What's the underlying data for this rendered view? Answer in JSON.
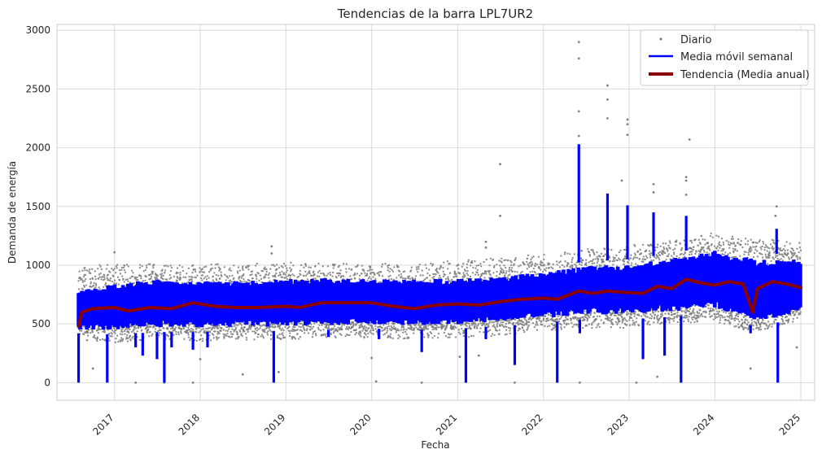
{
  "chart_data": {
    "type": "line",
    "title": "Tendencias de la barra LPL7UR2",
    "xlabel": "Fecha",
    "ylabel": "Demanda de energía",
    "xlim": [
      "2016-05-01",
      "2025-03-01"
    ],
    "ylim": [
      -150,
      3050
    ],
    "grid": true,
    "legend_position": "top-right",
    "x_ticks": [
      "2017",
      "2018",
      "2019",
      "2020",
      "2021",
      "2022",
      "2023",
      "2024",
      "2025"
    ],
    "y_ticks": [
      "0",
      "500",
      "1000",
      "1500",
      "2000",
      "2500",
      "3000"
    ],
    "series": [
      {
        "name": "Diario",
        "style": "points",
        "color": "#808080",
        "x_start": "2016-08-01",
        "x_end": "2025-01-01",
        "baseline": [
          [
            "2016-08-01",
            640
          ],
          [
            "2017-01-01",
            620
          ],
          [
            "2017-07-01",
            650
          ],
          [
            "2018-01-01",
            630
          ],
          [
            "2018-07-01",
            640
          ],
          [
            "2019-01-01",
            645
          ],
          [
            "2019-07-01",
            660
          ],
          [
            "2020-01-01",
            655
          ],
          [
            "2020-07-01",
            640
          ],
          [
            "2021-01-01",
            660
          ],
          [
            "2021-07-01",
            680
          ],
          [
            "2022-01-01",
            730
          ],
          [
            "2022-07-01",
            760
          ],
          [
            "2023-01-01",
            760
          ],
          [
            "2023-07-01",
            820
          ],
          [
            "2024-01-01",
            860
          ],
          [
            "2024-07-01",
            820
          ],
          [
            "2025-01-01",
            820
          ]
        ],
        "high_band": [
          [
            "2016-08-01",
            1000
          ],
          [
            "2017-06-01",
            1010
          ],
          [
            "2018-06-01",
            1010
          ],
          [
            "2019-06-01",
            1030
          ],
          [
            "2020-06-01",
            1010
          ],
          [
            "2021-06-01",
            1060
          ],
          [
            "2022-06-01",
            1130
          ],
          [
            "2023-06-01",
            1200
          ],
          [
            "2024-01-01",
            1280
          ],
          [
            "2024-06-01",
            1230
          ],
          [
            "2025-01-01",
            1200
          ]
        ],
        "low_band": [
          [
            "2016-08-01",
            420
          ],
          [
            "2017-06-01",
            420
          ],
          [
            "2018-06-01",
            430
          ],
          [
            "2019-06-01",
            440
          ],
          [
            "2020-06-01",
            440
          ],
          [
            "2021-06-01",
            470
          ],
          [
            "2022-06-01",
            510
          ],
          [
            "2023-06-01",
            540
          ],
          [
            "2024-01-01",
            560
          ],
          [
            "2024-06-01",
            420
          ],
          [
            "2025-01-01",
            540
          ]
        ],
        "outliers": [
          [
            "2022-06-01",
            2900
          ],
          [
            "2022-06-01",
            2760
          ],
          [
            "2022-06-01",
            2310
          ],
          [
            "2022-06-01",
            2100
          ],
          [
            "2022-10-01",
            2530
          ],
          [
            "2022-10-01",
            2410
          ],
          [
            "2022-10-01",
            2250
          ],
          [
            "2022-12-25",
            2240
          ],
          [
            "2022-12-25",
            2200
          ],
          [
            "2022-12-25",
            2110
          ],
          [
            "2022-12-01",
            1720
          ],
          [
            "2023-09-15",
            2070
          ],
          [
            "2023-09-01",
            1750
          ],
          [
            "2023-09-01",
            1720
          ],
          [
            "2023-09-01",
            1600
          ],
          [
            "2023-04-15",
            1690
          ],
          [
            "2023-04-15",
            1620
          ],
          [
            "2021-07-01",
            1860
          ],
          [
            "2021-07-01",
            1420
          ],
          [
            "2024-09-20",
            1500
          ],
          [
            "2024-09-15",
            1420
          ],
          [
            "2021-05-01",
            1200
          ],
          [
            "2021-05-01",
            1150
          ],
          [
            "2018-11-01",
            1160
          ],
          [
            "2018-11-01",
            1100
          ],
          [
            "2017-01-01",
            1110
          ],
          [
            "2016-10-01",
            120
          ],
          [
            "2017-04-01",
            0
          ],
          [
            "2017-08-01",
            0
          ],
          [
            "2017-12-01",
            0
          ],
          [
            "2018-01-01",
            200
          ],
          [
            "2018-07-01",
            70
          ],
          [
            "2018-12-01",
            90
          ],
          [
            "2020-01-01",
            210
          ],
          [
            "2020-01-20",
            10
          ],
          [
            "2020-08-01",
            0
          ],
          [
            "2021-01-10",
            220
          ],
          [
            "2021-04-01",
            230
          ],
          [
            "2021-09-01",
            0
          ],
          [
            "2022-06-05",
            0
          ],
          [
            "2023-02-01",
            0
          ],
          [
            "2023-05-01",
            50
          ],
          [
            "2023-06-01",
            280
          ],
          [
            "2024-06-01",
            120
          ],
          [
            "2024-12-15",
            300
          ]
        ]
      },
      {
        "name": "Media móvil semanal",
        "style": "band-line",
        "color": "#0000ff",
        "x_start": "2016-08-01",
        "x_end": "2025-01-01",
        "high_band": [
          [
            "2016-08-01",
            820
          ],
          [
            "2017-01-01",
            880
          ],
          [
            "2017-07-01",
            920
          ],
          [
            "2018-01-01",
            910
          ],
          [
            "2018-07-01",
            900
          ],
          [
            "2019-01-01",
            920
          ],
          [
            "2019-07-01",
            930
          ],
          [
            "2020-01-01",
            920
          ],
          [
            "2020-07-01",
            920
          ],
          [
            "2021-01-01",
            920
          ],
          [
            "2021-07-01",
            940
          ],
          [
            "2022-01-01",
            980
          ],
          [
            "2022-07-01",
            1030
          ],
          [
            "2023-01-01",
            1050
          ],
          [
            "2023-07-01",
            1100
          ],
          [
            "2024-01-01",
            1170
          ],
          [
            "2024-07-01",
            1100
          ],
          [
            "2025-01-01",
            1090
          ]
        ],
        "low_band": [
          [
            "2016-08-01",
            420
          ],
          [
            "2017-01-01",
            410
          ],
          [
            "2017-07-01",
            430
          ],
          [
            "2018-01-01",
            430
          ],
          [
            "2018-07-01",
            440
          ],
          [
            "2019-01-01",
            440
          ],
          [
            "2019-07-01",
            450
          ],
          [
            "2020-01-01",
            460
          ],
          [
            "2020-07-01",
            450
          ],
          [
            "2021-01-01",
            460
          ],
          [
            "2021-07-01",
            480
          ],
          [
            "2022-01-01",
            510
          ],
          [
            "2022-07-01",
            540
          ],
          [
            "2023-01-01",
            540
          ],
          [
            "2023-07-01",
            560
          ],
          [
            "2024-01-01",
            590
          ],
          [
            "2024-07-01",
            470
          ],
          [
            "2025-01-01",
            560
          ]
        ],
        "spikes_up": [
          [
            "2022-06-01",
            2030
          ],
          [
            "2022-10-01",
            1610
          ],
          [
            "2022-12-25",
            1510
          ],
          [
            "2023-04-15",
            1450
          ],
          [
            "2023-09-01",
            1420
          ],
          [
            "2024-09-20",
            1310
          ]
        ],
        "spikes_down": [
          [
            "2016-08-01",
            0
          ],
          [
            "2016-12-01",
            0
          ],
          [
            "2017-04-01",
            300
          ],
          [
            "2017-05-01",
            230
          ],
          [
            "2017-07-01",
            200
          ],
          [
            "2017-08-01",
            0
          ],
          [
            "2017-09-01",
            300
          ],
          [
            "2017-12-01",
            280
          ],
          [
            "2018-02-01",
            300
          ],
          [
            "2018-11-10",
            0
          ],
          [
            "2019-07-01",
            390
          ],
          [
            "2020-02-01",
            370
          ],
          [
            "2020-08-01",
            260
          ],
          [
            "2021-02-05",
            0
          ],
          [
            "2021-05-01",
            370
          ],
          [
            "2021-09-01",
            150
          ],
          [
            "2022-03-01",
            0
          ],
          [
            "2022-06-05",
            420
          ],
          [
            "2023-03-01",
            200
          ],
          [
            "2023-06-01",
            230
          ],
          [
            "2023-08-10",
            0
          ],
          [
            "2024-06-01",
            420
          ],
          [
            "2024-09-25",
            0
          ]
        ]
      },
      {
        "name": "Tendencia (Media anual)",
        "style": "line",
        "color": "#8b0000",
        "points": [
          [
            "2016-08-01",
            480
          ],
          [
            "2016-08-15",
            600
          ],
          [
            "2016-10-01",
            630
          ],
          [
            "2017-01-01",
            640
          ],
          [
            "2017-03-01",
            610
          ],
          [
            "2017-06-01",
            640
          ],
          [
            "2017-09-01",
            630
          ],
          [
            "2017-12-01",
            680
          ],
          [
            "2018-03-01",
            650
          ],
          [
            "2018-06-01",
            640
          ],
          [
            "2018-09-01",
            640
          ],
          [
            "2019-01-01",
            650
          ],
          [
            "2019-03-01",
            640
          ],
          [
            "2019-06-01",
            680
          ],
          [
            "2019-09-01",
            680
          ],
          [
            "2020-01-01",
            680
          ],
          [
            "2020-04-01",
            650
          ],
          [
            "2020-07-01",
            630
          ],
          [
            "2020-10-01",
            660
          ],
          [
            "2021-01-01",
            670
          ],
          [
            "2021-04-01",
            660
          ],
          [
            "2021-07-01",
            690
          ],
          [
            "2021-10-01",
            710
          ],
          [
            "2022-01-01",
            720
          ],
          [
            "2022-03-01",
            710
          ],
          [
            "2022-06-01",
            780
          ],
          [
            "2022-08-01",
            760
          ],
          [
            "2022-10-01",
            780
          ],
          [
            "2022-12-01",
            770
          ],
          [
            "2023-03-01",
            760
          ],
          [
            "2023-05-01",
            820
          ],
          [
            "2023-07-01",
            800
          ],
          [
            "2023-09-01",
            880
          ],
          [
            "2023-11-01",
            850
          ],
          [
            "2024-01-01",
            830
          ],
          [
            "2024-03-01",
            860
          ],
          [
            "2024-05-01",
            840
          ],
          [
            "2024-06-10",
            600
          ],
          [
            "2024-07-01",
            800
          ],
          [
            "2024-09-01",
            860
          ],
          [
            "2024-11-01",
            840
          ],
          [
            "2025-01-01",
            810
          ]
        ]
      }
    ]
  }
}
